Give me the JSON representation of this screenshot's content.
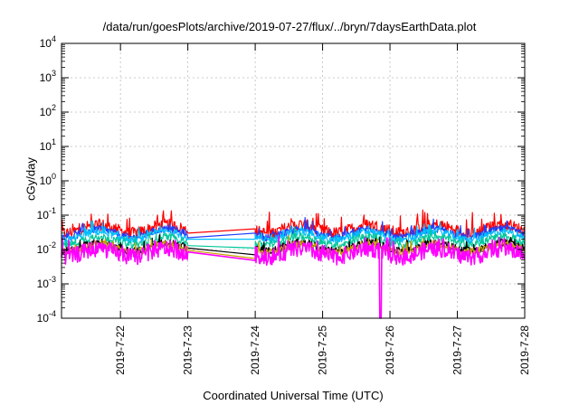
{
  "chart_data": {
    "type": "line",
    "title": "/data/run/goesPlots/archive/2019-07-27/flux/../bryn/7daysEarthData.plot",
    "xlabel": "Coordinated Universal Time (UTC)",
    "ylabel": "cGy/day",
    "x_tick_labels": [
      "2019-7-22",
      "2019-7-23",
      "2019-7-24",
      "2019-7-25",
      "2019-7-26",
      "2019-7-27",
      "2019-7-28"
    ],
    "xlim": [
      "2019-07-21T03:00",
      "2019-07-28T00:00"
    ],
    "y_scale": "log",
    "ylim": [
      0.0001,
      10000
    ],
    "y_tick_labels": [
      {
        "base": "10",
        "exp": "-4"
      },
      {
        "base": "10",
        "exp": "-3"
      },
      {
        "base": "10",
        "exp": "-2"
      },
      {
        "base": "10",
        "exp": "-1"
      },
      {
        "base": "10",
        "exp": "0"
      },
      {
        "base": "10",
        "exp": "1"
      },
      {
        "base": "10",
        "exp": "2"
      },
      {
        "base": "10",
        "exp": "3"
      },
      {
        "base": "10",
        "exp": "4"
      }
    ],
    "grid": true,
    "data_gap": [
      "2019-07-23T00:00",
      "2019-07-24T00:00"
    ],
    "series": [
      {
        "color": "#ff0000",
        "typical": 0.04,
        "peak": 0.12,
        "at_gap_start": 0.03,
        "at_gap_end": 0.04
      },
      {
        "color": "#1f3fff",
        "typical": 0.03,
        "peak": 0.06,
        "at_gap_start": 0.022,
        "at_gap_end": 0.03
      },
      {
        "color": "#00bfff",
        "typical": 0.025,
        "peak": 0.05,
        "at_gap_start": 0.02,
        "at_gap_end": 0.02
      },
      {
        "color": "#00c79a",
        "typical": 0.018,
        "peak": 0.03,
        "at_gap_start": 0.013,
        "at_gap_end": 0.011
      },
      {
        "color": "#000000",
        "typical": 0.012,
        "peak": 0.02,
        "at_gap_start": 0.011,
        "at_gap_end": 0.007
      },
      {
        "color": "#c8a000",
        "typical": 0.011,
        "peak": 0.02,
        "at_gap_start": 0.0095,
        "at_gap_end": 0.0055
      },
      {
        "color": "#ff00ff",
        "typical": 0.008,
        "peak": 0.02,
        "at_gap_start": 0.0085,
        "at_gap_end": 0.0048,
        "dropout": {
          "x": "2019-07-25T20:30",
          "min": 0.0001
        }
      }
    ]
  }
}
